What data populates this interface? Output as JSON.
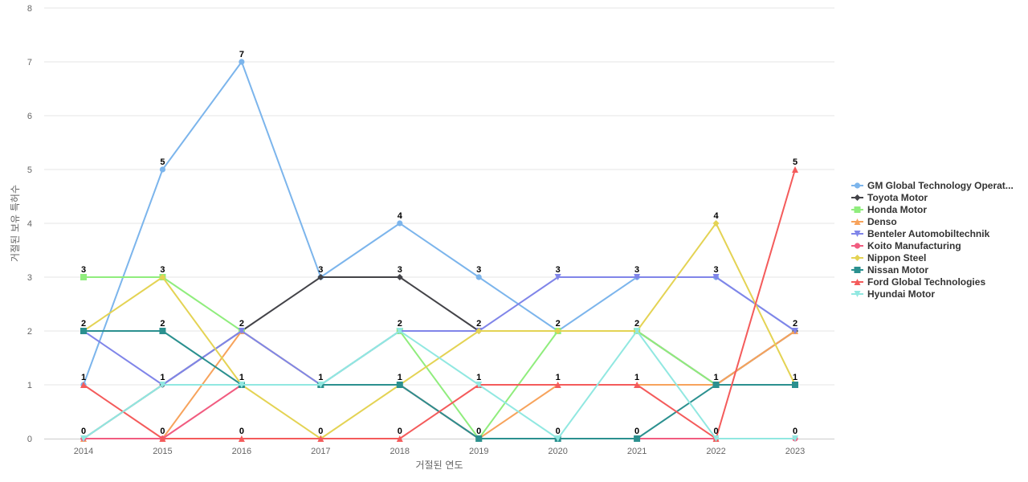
{
  "chart_data": {
    "type": "line",
    "title": "",
    "xlabel": "거절된 연도",
    "ylabel": "거절된 보유 특허수",
    "x": [
      2014,
      2015,
      2016,
      2017,
      2018,
      2019,
      2020,
      2021,
      2022,
      2023
    ],
    "ylim": [
      0,
      8
    ],
    "yticks": [
      0,
      1,
      2,
      3,
      4,
      5,
      6,
      7,
      8
    ],
    "grid": true,
    "legend": "right",
    "series": [
      {
        "name": "GM Global Technology Operat...",
        "color": "#7cb5ec",
        "marker": "circle",
        "values": [
          1,
          5,
          7,
          3,
          4,
          3,
          2,
          3,
          3,
          2
        ]
      },
      {
        "name": "Toyota Motor",
        "color": "#434348",
        "marker": "diamond",
        "values": [
          0,
          1,
          2,
          3,
          3,
          2,
          2,
          2,
          1,
          2
        ]
      },
      {
        "name": "Honda Motor",
        "color": "#90ed7d",
        "marker": "square",
        "values": [
          3,
          3,
          2,
          1,
          2,
          0,
          2,
          2,
          1,
          1
        ]
      },
      {
        "name": "Denso",
        "color": "#f7a35c",
        "marker": "triangle",
        "values": [
          0,
          0,
          2,
          1,
          1,
          0,
          1,
          1,
          1,
          2
        ]
      },
      {
        "name": "Benteler Automobiltechnik",
        "color": "#8085e9",
        "marker": "triangle-down",
        "values": [
          2,
          1,
          2,
          1,
          2,
          2,
          3,
          3,
          3,
          2
        ]
      },
      {
        "name": "Koito Manufacturing",
        "color": "#f15c80",
        "marker": "circle",
        "values": [
          0,
          0,
          1,
          1,
          1,
          0,
          0,
          0,
          0,
          0
        ]
      },
      {
        "name": "Nippon Steel",
        "color": "#e4d354",
        "marker": "diamond",
        "values": [
          2,
          3,
          1,
          0,
          1,
          2,
          2,
          2,
          4,
          1
        ]
      },
      {
        "name": "Nissan Motor",
        "color": "#2b908f",
        "marker": "square",
        "values": [
          2,
          2,
          1,
          1,
          1,
          0,
          0,
          0,
          1,
          1
        ]
      },
      {
        "name": "Ford Global Technologies",
        "color": "#f45b5b",
        "marker": "triangle",
        "values": [
          1,
          0,
          0,
          0,
          0,
          1,
          1,
          1,
          0,
          5
        ]
      },
      {
        "name": "Hyundai Motor",
        "color": "#91e8e1",
        "marker": "triangle-down",
        "values": [
          0,
          1,
          1,
          1,
          2,
          1,
          0,
          2,
          0,
          0
        ]
      }
    ],
    "data_labels": [
      {
        "x": 2014,
        "y": 3,
        "text": "3"
      },
      {
        "x": 2014,
        "y": 2,
        "text": "2"
      },
      {
        "x": 2014,
        "y": 1,
        "text": "1"
      },
      {
        "x": 2014,
        "y": 0,
        "text": "0"
      },
      {
        "x": 2015,
        "y": 5,
        "text": "5"
      },
      {
        "x": 2015,
        "y": 3,
        "text": "3"
      },
      {
        "x": 2015,
        "y": 2,
        "text": "2"
      },
      {
        "x": 2015,
        "y": 1,
        "text": "1"
      },
      {
        "x": 2015,
        "y": 0,
        "text": "0"
      },
      {
        "x": 2016,
        "y": 7,
        "text": "7"
      },
      {
        "x": 2016,
        "y": 2,
        "text": "2"
      },
      {
        "x": 2016,
        "y": 1,
        "text": "1"
      },
      {
        "x": 2016,
        "y": 0,
        "text": "0"
      },
      {
        "x": 2017,
        "y": 3,
        "text": "3"
      },
      {
        "x": 2017,
        "y": 1,
        "text": "1"
      },
      {
        "x": 2017,
        "y": 0,
        "text": "0"
      },
      {
        "x": 2018,
        "y": 4,
        "text": "4"
      },
      {
        "x": 2018,
        "y": 3,
        "text": "3"
      },
      {
        "x": 2018,
        "y": 2,
        "text": "2"
      },
      {
        "x": 2018,
        "y": 1,
        "text": "1"
      },
      {
        "x": 2018,
        "y": 0,
        "text": "0"
      },
      {
        "x": 2019,
        "y": 3,
        "text": "3"
      },
      {
        "x": 2019,
        "y": 2,
        "text": "2"
      },
      {
        "x": 2019,
        "y": 1,
        "text": "1"
      },
      {
        "x": 2019,
        "y": 0,
        "text": "0"
      },
      {
        "x": 2020,
        "y": 3,
        "text": "3"
      },
      {
        "x": 2020,
        "y": 2,
        "text": "2"
      },
      {
        "x": 2020,
        "y": 1,
        "text": "1"
      },
      {
        "x": 2020,
        "y": 0,
        "text": "0"
      },
      {
        "x": 2021,
        "y": 3,
        "text": "3"
      },
      {
        "x": 2021,
        "y": 2,
        "text": "2"
      },
      {
        "x": 2021,
        "y": 1,
        "text": "1"
      },
      {
        "x": 2021,
        "y": 0,
        "text": "0"
      },
      {
        "x": 2022,
        "y": 4,
        "text": "4"
      },
      {
        "x": 2022,
        "y": 3,
        "text": "3"
      },
      {
        "x": 2022,
        "y": 1,
        "text": "1"
      },
      {
        "x": 2022,
        "y": 0,
        "text": "0"
      },
      {
        "x": 2023,
        "y": 5,
        "text": "5"
      },
      {
        "x": 2023,
        "y": 2,
        "text": "2"
      },
      {
        "x": 2023,
        "y": 1,
        "text": "1"
      },
      {
        "x": 2023,
        "y": 0,
        "text": "0"
      }
    ]
  }
}
